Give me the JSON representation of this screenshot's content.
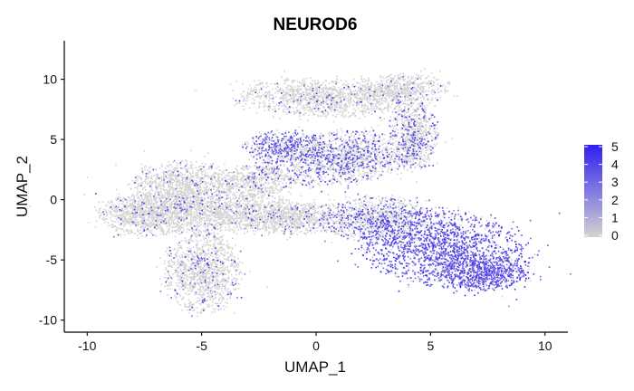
{
  "chart_data": {
    "type": "scatter",
    "title": "NEUROD6",
    "xlabel": "UMAP_1",
    "ylabel": "UMAP_2",
    "xlim": [
      -11,
      11
    ],
    "ylim": [
      -11,
      13.2
    ],
    "x_ticks": [
      -10,
      -5,
      0,
      5,
      10
    ],
    "y_ticks": [
      -10,
      -5,
      0,
      5,
      10
    ],
    "grid": false,
    "legend": {
      "placement": "right",
      "type": "colorbar",
      "ticks": [
        0,
        1,
        2,
        3,
        4,
        5
      ],
      "min": 0,
      "max": 5,
      "low_color": "#d3d3d3",
      "high_color": "#2f1ff0"
    },
    "point_color_low": "#d3d3d3",
    "point_color_high": "#2f1ff0",
    "clusters": [
      {
        "x": 0.3,
        "y": 8.5,
        "rx": 3.4,
        "ry": 1.4,
        "rot": -5,
        "expr": 0.05
      },
      {
        "x": 3.7,
        "y": 9.3,
        "rx": 1.9,
        "ry": 1.1,
        "rot": 0,
        "expr": 0.05
      },
      {
        "x": 4.3,
        "y": 5.5,
        "rx": 0.9,
        "ry": 2.6,
        "rot": 0,
        "expr": 0.2
      },
      {
        "x": 1.0,
        "y": 3.5,
        "rx": 3.3,
        "ry": 1.9,
        "rot": 15,
        "expr": 0.3
      },
      {
        "x": -1.5,
        "y": 4.5,
        "rx": 1.6,
        "ry": 1.1,
        "rot": 0,
        "expr": 0.55
      },
      {
        "x": -2.8,
        "y": 1.5,
        "rx": 1.5,
        "ry": 1.2,
        "rot": 0,
        "expr": 0.08
      },
      {
        "x": -5.8,
        "y": 1.3,
        "rx": 2.0,
        "ry": 1.8,
        "rot": 0,
        "expr": 0.06
      },
      {
        "x": -7.5,
        "y": -1.2,
        "rx": 1.8,
        "ry": 1.6,
        "rot": 0,
        "expr": 0.06
      },
      {
        "x": -4.5,
        "y": -1.0,
        "rx": 3.8,
        "ry": 1.6,
        "rot": 0,
        "expr": 0.05
      },
      {
        "x": -5.0,
        "y": -6.0,
        "rx": 1.5,
        "ry": 3.0,
        "rot": 0,
        "expr": 0.1
      },
      {
        "x": -1.0,
        "y": -1.5,
        "rx": 2.0,
        "ry": 1.2,
        "rot": 0,
        "expr": 0.07
      },
      {
        "x": 2.5,
        "y": -1.5,
        "rx": 2.2,
        "ry": 1.6,
        "rot": 0,
        "expr": 0.25
      },
      {
        "x": 5.5,
        "y": -4.0,
        "rx": 3.5,
        "ry": 2.7,
        "rot": -30,
        "expr": 0.85
      },
      {
        "x": 7.3,
        "y": -6.0,
        "rx": 1.7,
        "ry": 1.3,
        "rot": 0,
        "expr": 0.9
      }
    ]
  }
}
